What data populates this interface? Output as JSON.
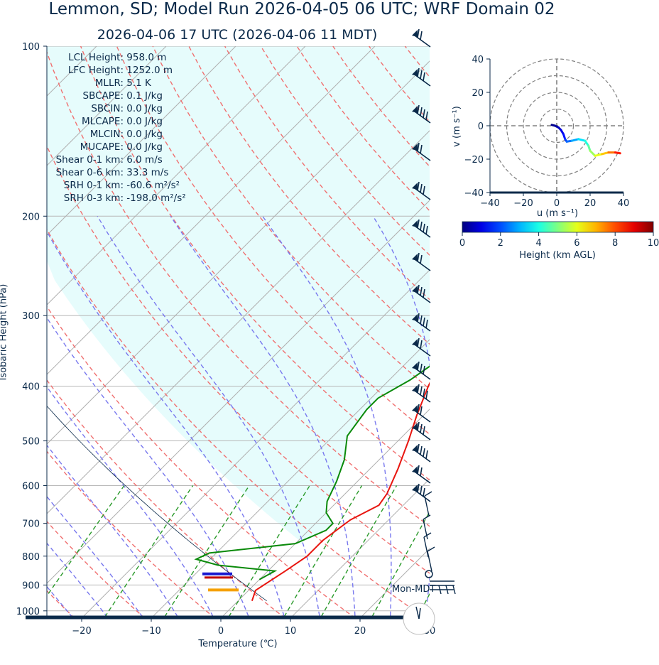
{
  "title": "Lemmon, SD; Model Run 2026-04-05 06 UTC; WRF Domain 02",
  "subtitle": "2026-04-06 17 UTC  (2026-04-06 11 MDT)",
  "stats": [
    {
      "label": "LCL Height:",
      "value": "958.0 m"
    },
    {
      "label": "LFC Height:",
      "value": "1252.0 m"
    },
    {
      "label": "MLLR:",
      "value": "5.1 K"
    },
    {
      "label": "SBCAPE:",
      "value": "0.1 J/kg"
    },
    {
      "label": "SBCIN:",
      "value": "0.0 J/kg"
    },
    {
      "label": "MLCAPE:",
      "value": "0.0 J/kg"
    },
    {
      "label": "MLCIN:",
      "value": "0.0 J/kg"
    },
    {
      "label": "MUCAPE:",
      "value": "0.0 J/kg"
    },
    {
      "label": "Shear 0-1 km:",
      "value": "6.0 m/s"
    },
    {
      "label": "Shear 0-6 km:",
      "value": "33.3 m/s"
    },
    {
      "label": "SRH 0-1 km:",
      "value": "-60.6 m²/s²"
    },
    {
      "label": "SRH 0-3 km:",
      "value": "-198.0 m²/s²"
    }
  ],
  "clock_label": "Mon-MDT",
  "colors": {
    "temperature": "#e8150f",
    "dewpoint": "#0a8a0a",
    "text": "#0b2a4a",
    "cape_fill": "#e6fcfc"
  },
  "chart_data": [
    {
      "type": "line",
      "name": "skew-t",
      "xlabel": "Temperature (℃)",
      "ylabel": "Isobaric Height (hPa)",
      "xlim": [
        -25,
        30
      ],
      "ylim": [
        1030,
        100
      ],
      "y_scale": "log",
      "x_ticks": [
        -20,
        -10,
        0,
        10,
        20,
        30
      ],
      "y_ticks": [
        1000,
        900,
        800,
        700,
        600,
        500,
        400,
        300,
        200,
        100
      ],
      "grid": true,
      "series": [
        {
          "name": "temperature",
          "points": [
            [
              2,
              960
            ],
            [
              1,
              920
            ],
            [
              2.5,
              850
            ],
            [
              3.5,
              800
            ],
            [
              3.5,
              750
            ],
            [
              4.5,
              690
            ],
            [
              6.5,
              650
            ],
            [
              6,
              620
            ],
            [
              4,
              560
            ],
            [
              1.5,
              500
            ],
            [
              -1,
              450
            ],
            [
              -3.5,
              400
            ],
            [
              -6.5,
              340
            ],
            [
              -9,
              300
            ],
            [
              -12,
              255
            ],
            [
              -12.5,
              215
            ],
            [
              -8,
              185
            ],
            [
              -1,
              165
            ],
            [
              5,
              145
            ],
            [
              11,
              122
            ],
            [
              15,
              110
            ],
            [
              19,
              100
            ]
          ]
        },
        {
          "name": "dewpoint",
          "points": [
            [
              0,
              880
            ],
            [
              1,
              850
            ],
            [
              -8,
              830
            ],
            [
              -12,
              810
            ],
            [
              -11,
              790
            ],
            [
              0,
              760
            ],
            [
              2.5,
              720
            ],
            [
              2.5,
              700
            ],
            [
              0,
              670
            ],
            [
              -1.5,
              640
            ],
            [
              -3,
              590
            ],
            [
              -5,
              540
            ],
            [
              -8,
              490
            ],
            [
              -9,
              440
            ],
            [
              -9,
              420
            ],
            [
              -7,
              390
            ],
            [
              -6,
              365
            ],
            [
              -7,
              330
            ],
            [
              -9,
              290
            ],
            [
              -10.5,
              260
            ],
            [
              -11,
              225
            ],
            [
              -11.5,
              185
            ],
            [
              -13,
              165
            ],
            [
              -10,
              140
            ],
            [
              -7,
              118
            ],
            [
              -4,
              100
            ]
          ]
        }
      ],
      "annotations": {
        "lcl_marks_hpa": [
          865,
          868
        ],
        "lfc_mark_hpa": 905
      }
    },
    {
      "type": "line",
      "name": "hodograph",
      "xlabel": "u (m s⁻¹)",
      "ylabel": "v (m s⁻¹)",
      "xlim": [
        -40,
        40
      ],
      "ylim": [
        -40,
        40
      ],
      "x_ticks": [
        -40,
        -20,
        0,
        20,
        40
      ],
      "y_ticks": [
        40,
        20,
        0,
        -20,
        -40
      ],
      "rings": [
        10,
        20,
        30,
        40
      ],
      "points": [
        {
          "u": -3,
          "v": 0.5,
          "z": 0
        },
        {
          "u": -1,
          "v": 0,
          "z": 0.2
        },
        {
          "u": 1,
          "v": -1,
          "z": 0.5
        },
        {
          "u": 2.5,
          "v": -2.5,
          "z": 0.8
        },
        {
          "u": 4,
          "v": -5,
          "z": 1.2
        },
        {
          "u": 5,
          "v": -8,
          "z": 1.6
        },
        {
          "u": 6,
          "v": -9.5,
          "z": 2.0
        },
        {
          "u": 9,
          "v": -9,
          "z": 2.6
        },
        {
          "u": 13,
          "v": -8,
          "z": 3.2
        },
        {
          "u": 17,
          "v": -9,
          "z": 3.8
        },
        {
          "u": 19,
          "v": -12,
          "z": 4.4
        },
        {
          "u": 20,
          "v": -15,
          "z": 5.0
        },
        {
          "u": 23,
          "v": -18,
          "z": 5.6
        },
        {
          "u": 27,
          "v": -17,
          "z": 6.4
        },
        {
          "u": 31,
          "v": -16,
          "z": 7.2
        },
        {
          "u": 35,
          "v": -16,
          "z": 8.0
        },
        {
          "u": 38,
          "v": -16.5,
          "z": 9.0
        }
      ]
    },
    {
      "type": "heatmap",
      "name": "height-colorbar",
      "xlabel": "Height (km AGL)",
      "xlim": [
        0,
        10
      ],
      "x_ticks": [
        0,
        2,
        4,
        6,
        8,
        10
      ],
      "colormap": "jet"
    }
  ]
}
